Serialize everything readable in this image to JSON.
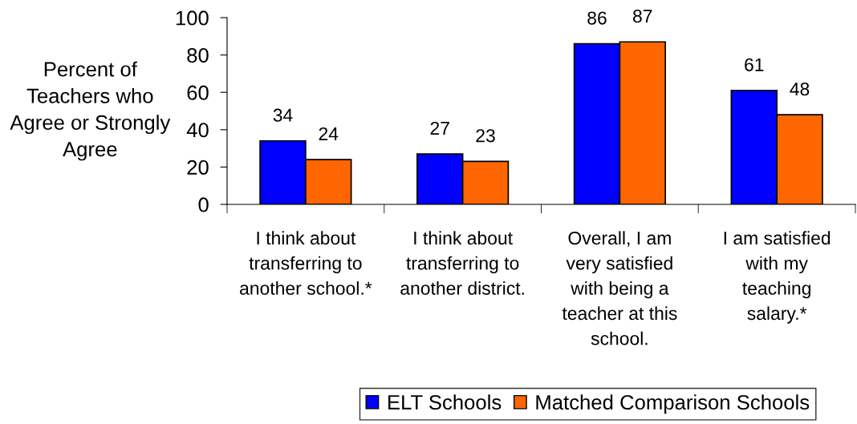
{
  "chart_data": {
    "type": "bar",
    "ylabel": "Percent of\nTeachers who\nAgree or Strongly\nAgree",
    "categories": [
      "I think about\ntransferring to\nanother school.*",
      "I think about\ntransferring to\nanother district.",
      "Overall, I am\nvery satisfied\nwith being a\nteacher at this\nschool.",
      "I am satisfied\nwith my\nteaching\nsalary.*"
    ],
    "series": [
      {
        "name": "ELT Schools",
        "color": "#0000ff",
        "values": [
          34,
          27,
          86,
          61
        ]
      },
      {
        "name": "Matched Comparison Schools",
        "color": "#ff6600",
        "values": [
          24,
          23,
          87,
          48
        ]
      }
    ],
    "ylim": [
      0,
      100
    ],
    "yticks": [
      0,
      20,
      40,
      60,
      80,
      100
    ],
    "data_labels": true,
    "legend": "bottom"
  }
}
